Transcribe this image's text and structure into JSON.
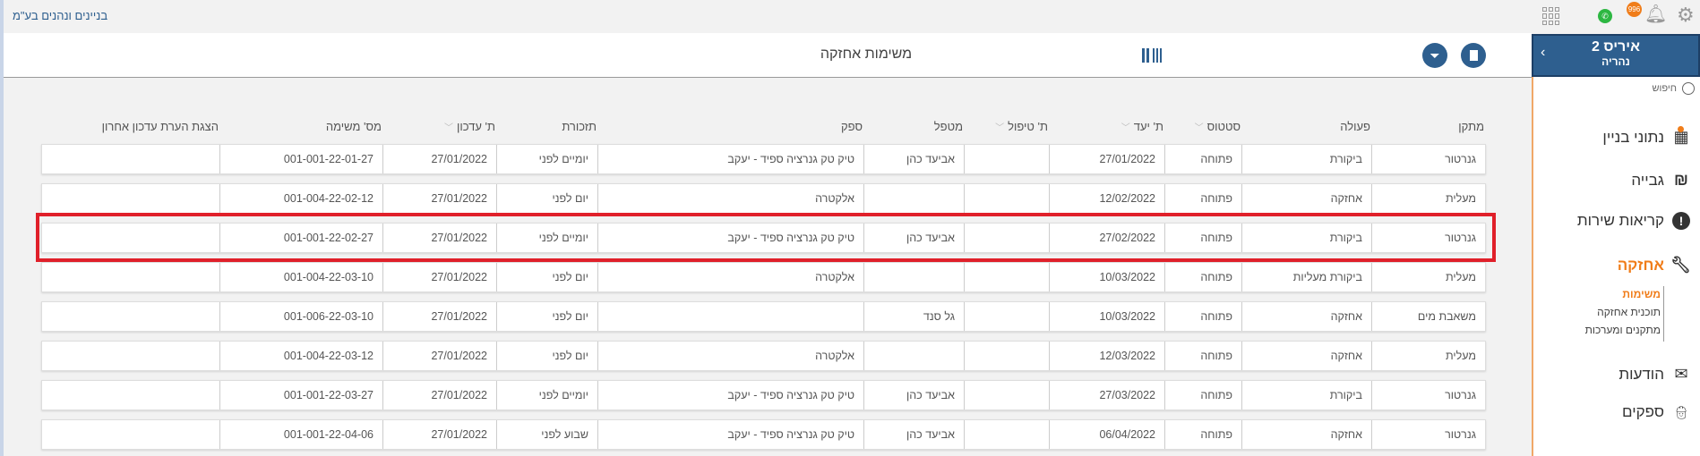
{
  "top": {
    "company": "בניינים ונהנים בע\"מ",
    "badge": "996"
  },
  "header": {
    "title": "משימות אחזקה"
  },
  "sidebar": {
    "building": "איריס 2",
    "city": "נהריה",
    "search_placeholder": "חיפוש",
    "items": [
      {
        "label": "נתוני בניין",
        "icon": "building-icon"
      },
      {
        "label": "גבייה",
        "icon": "shekel-icon"
      },
      {
        "label": "קריאות שירות",
        "icon": "exclamation-icon"
      },
      {
        "label": "אחזקה",
        "icon": "wrench-icon"
      },
      {
        "label": "הודעות",
        "icon": "envelope-icon"
      },
      {
        "label": "ספקים",
        "icon": "worker-icon"
      }
    ],
    "subitems": [
      "משימות",
      "תוכנית אחזקה",
      "מתקנים ומערכות"
    ]
  },
  "colors": {
    "brand": "#2e5f8f",
    "accent": "#f07d1a",
    "highlight": "#e0202a"
  },
  "table": {
    "columns": [
      "מתקן",
      "פעולה",
      "סטטוס",
      "ת' יעד",
      "ת' טיפול",
      "מטפל",
      "ספק",
      "תזכורת",
      "ת' עדכון",
      "מס' משימה",
      "הצגת הערת עדכון אחרון"
    ],
    "rows": [
      [
        "גנרטור",
        "ביקורת",
        "פתוחה",
        "27/01/2022",
        "",
        "אביעד כהן",
        "טיק טק גנרציה ספיד - יעקב",
        "יומיים לפני",
        "27/01/2022",
        "001-001-22-01-27",
        ""
      ],
      [
        "מעלית",
        "אחזקה",
        "פתוחה",
        "12/02/2022",
        "",
        "",
        "אלקטרה",
        "יום לפני",
        "27/01/2022",
        "001-004-22-02-12",
        ""
      ],
      [
        "גנרטור",
        "ביקורת",
        "פתוחה",
        "27/02/2022",
        "",
        "אביעד כהן",
        "טיק טק גנרציה ספיד - יעקב",
        "יומיים לפני",
        "27/01/2022",
        "001-001-22-02-27",
        ""
      ],
      [
        "מעלית",
        "ביקורת מעליות",
        "פתוחה",
        "10/03/2022",
        "",
        "",
        "אלקטרה",
        "יום לפני",
        "27/01/2022",
        "001-004-22-03-10",
        ""
      ],
      [
        "משאבת מים",
        "אחזקה",
        "פתוחה",
        "10/03/2022",
        "",
        "גל סנד",
        "",
        "יום לפני",
        "27/01/2022",
        "001-006-22-03-10",
        ""
      ],
      [
        "מעלית",
        "אחזקה",
        "פתוחה",
        "12/03/2022",
        "",
        "",
        "אלקטרה",
        "יום לפני",
        "27/01/2022",
        "001-004-22-03-12",
        ""
      ],
      [
        "גנרטור",
        "ביקורת",
        "פתוחה",
        "27/03/2022",
        "",
        "אביעד כהן",
        "טיק טק גנרציה ספיד - יעקב",
        "יומיים לפני",
        "27/01/2022",
        "001-001-22-03-27",
        ""
      ],
      [
        "גנרטור",
        "אחזקה",
        "פתוחה",
        "06/04/2022",
        "",
        "אביעד כהן",
        "טיק טק גנרציה ספיד - יעקב",
        "שבוע לפני",
        "27/01/2022",
        "001-001-22-04-06",
        ""
      ]
    ],
    "highlighted_row": 2
  }
}
